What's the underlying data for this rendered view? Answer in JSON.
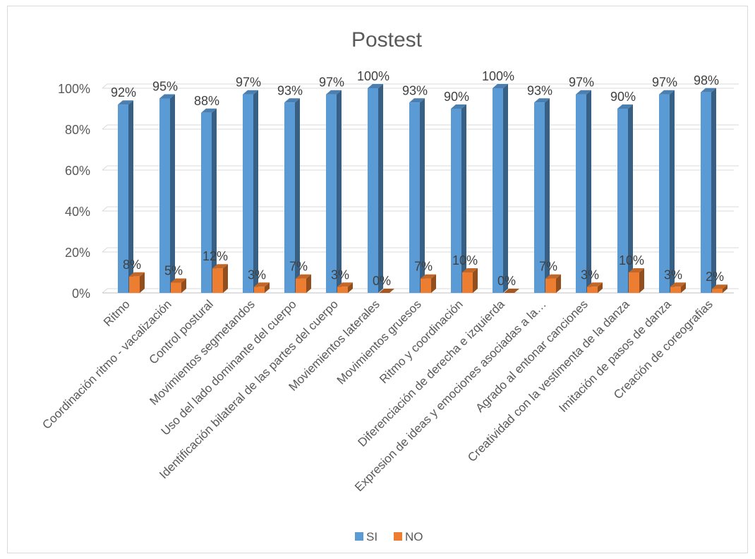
{
  "chart_data": {
    "type": "bar",
    "title": "Postest",
    "categories": [
      "Ritmo",
      "Coordinación ritmo - vacalización",
      "Control postural",
      "Movimientos segmetandos",
      "Uso del lado dominante del cuerpo",
      "Identificación bilateral de las partes del cuerpo",
      "Moviemientos laterales",
      "Movimientos gruesos",
      "Ritmo y coordinación",
      "Diferenciación de derecha e izquierda",
      "Expresion de ideas y emociones asociadas a la…",
      "Agrado al entonar canciones",
      "Creatividad con la vestimenta de la danza",
      "Imitación de pasos de danza",
      "Creación de coreografias"
    ],
    "series": [
      {
        "name": "SI",
        "color": "#5B9BD5",
        "values": [
          92,
          95,
          88,
          97,
          93,
          97,
          100,
          93,
          90,
          100,
          93,
          97,
          90,
          97,
          98
        ],
        "labels": [
          "92%",
          "95%",
          "88%",
          "97%",
          "93%",
          "97%",
          "100%",
          "93%",
          "90%",
          "100%",
          "93%",
          "97%",
          "90%",
          "97%",
          "98%"
        ]
      },
      {
        "name": "NO",
        "color": "#ED7D31",
        "values": [
          8,
          5,
          12,
          3,
          7,
          3,
          0,
          7,
          10,
          0,
          7,
          3,
          10,
          3,
          2
        ],
        "labels": [
          "8%",
          "5%",
          "12%",
          "3%",
          "7%",
          "3%",
          "0%",
          "7%",
          "10%",
          "0%",
          "7%",
          "3%",
          "10%",
          "3%",
          "2%"
        ]
      }
    ],
    "ylim": [
      0,
      100
    ],
    "yticks": [
      0,
      20,
      40,
      60,
      80,
      100
    ],
    "ytick_labels": [
      "0%",
      "20%",
      "40%",
      "60%",
      "80%",
      "100%"
    ],
    "grid": true,
    "legend": "bottom",
    "style": "3d-clustered-column"
  }
}
